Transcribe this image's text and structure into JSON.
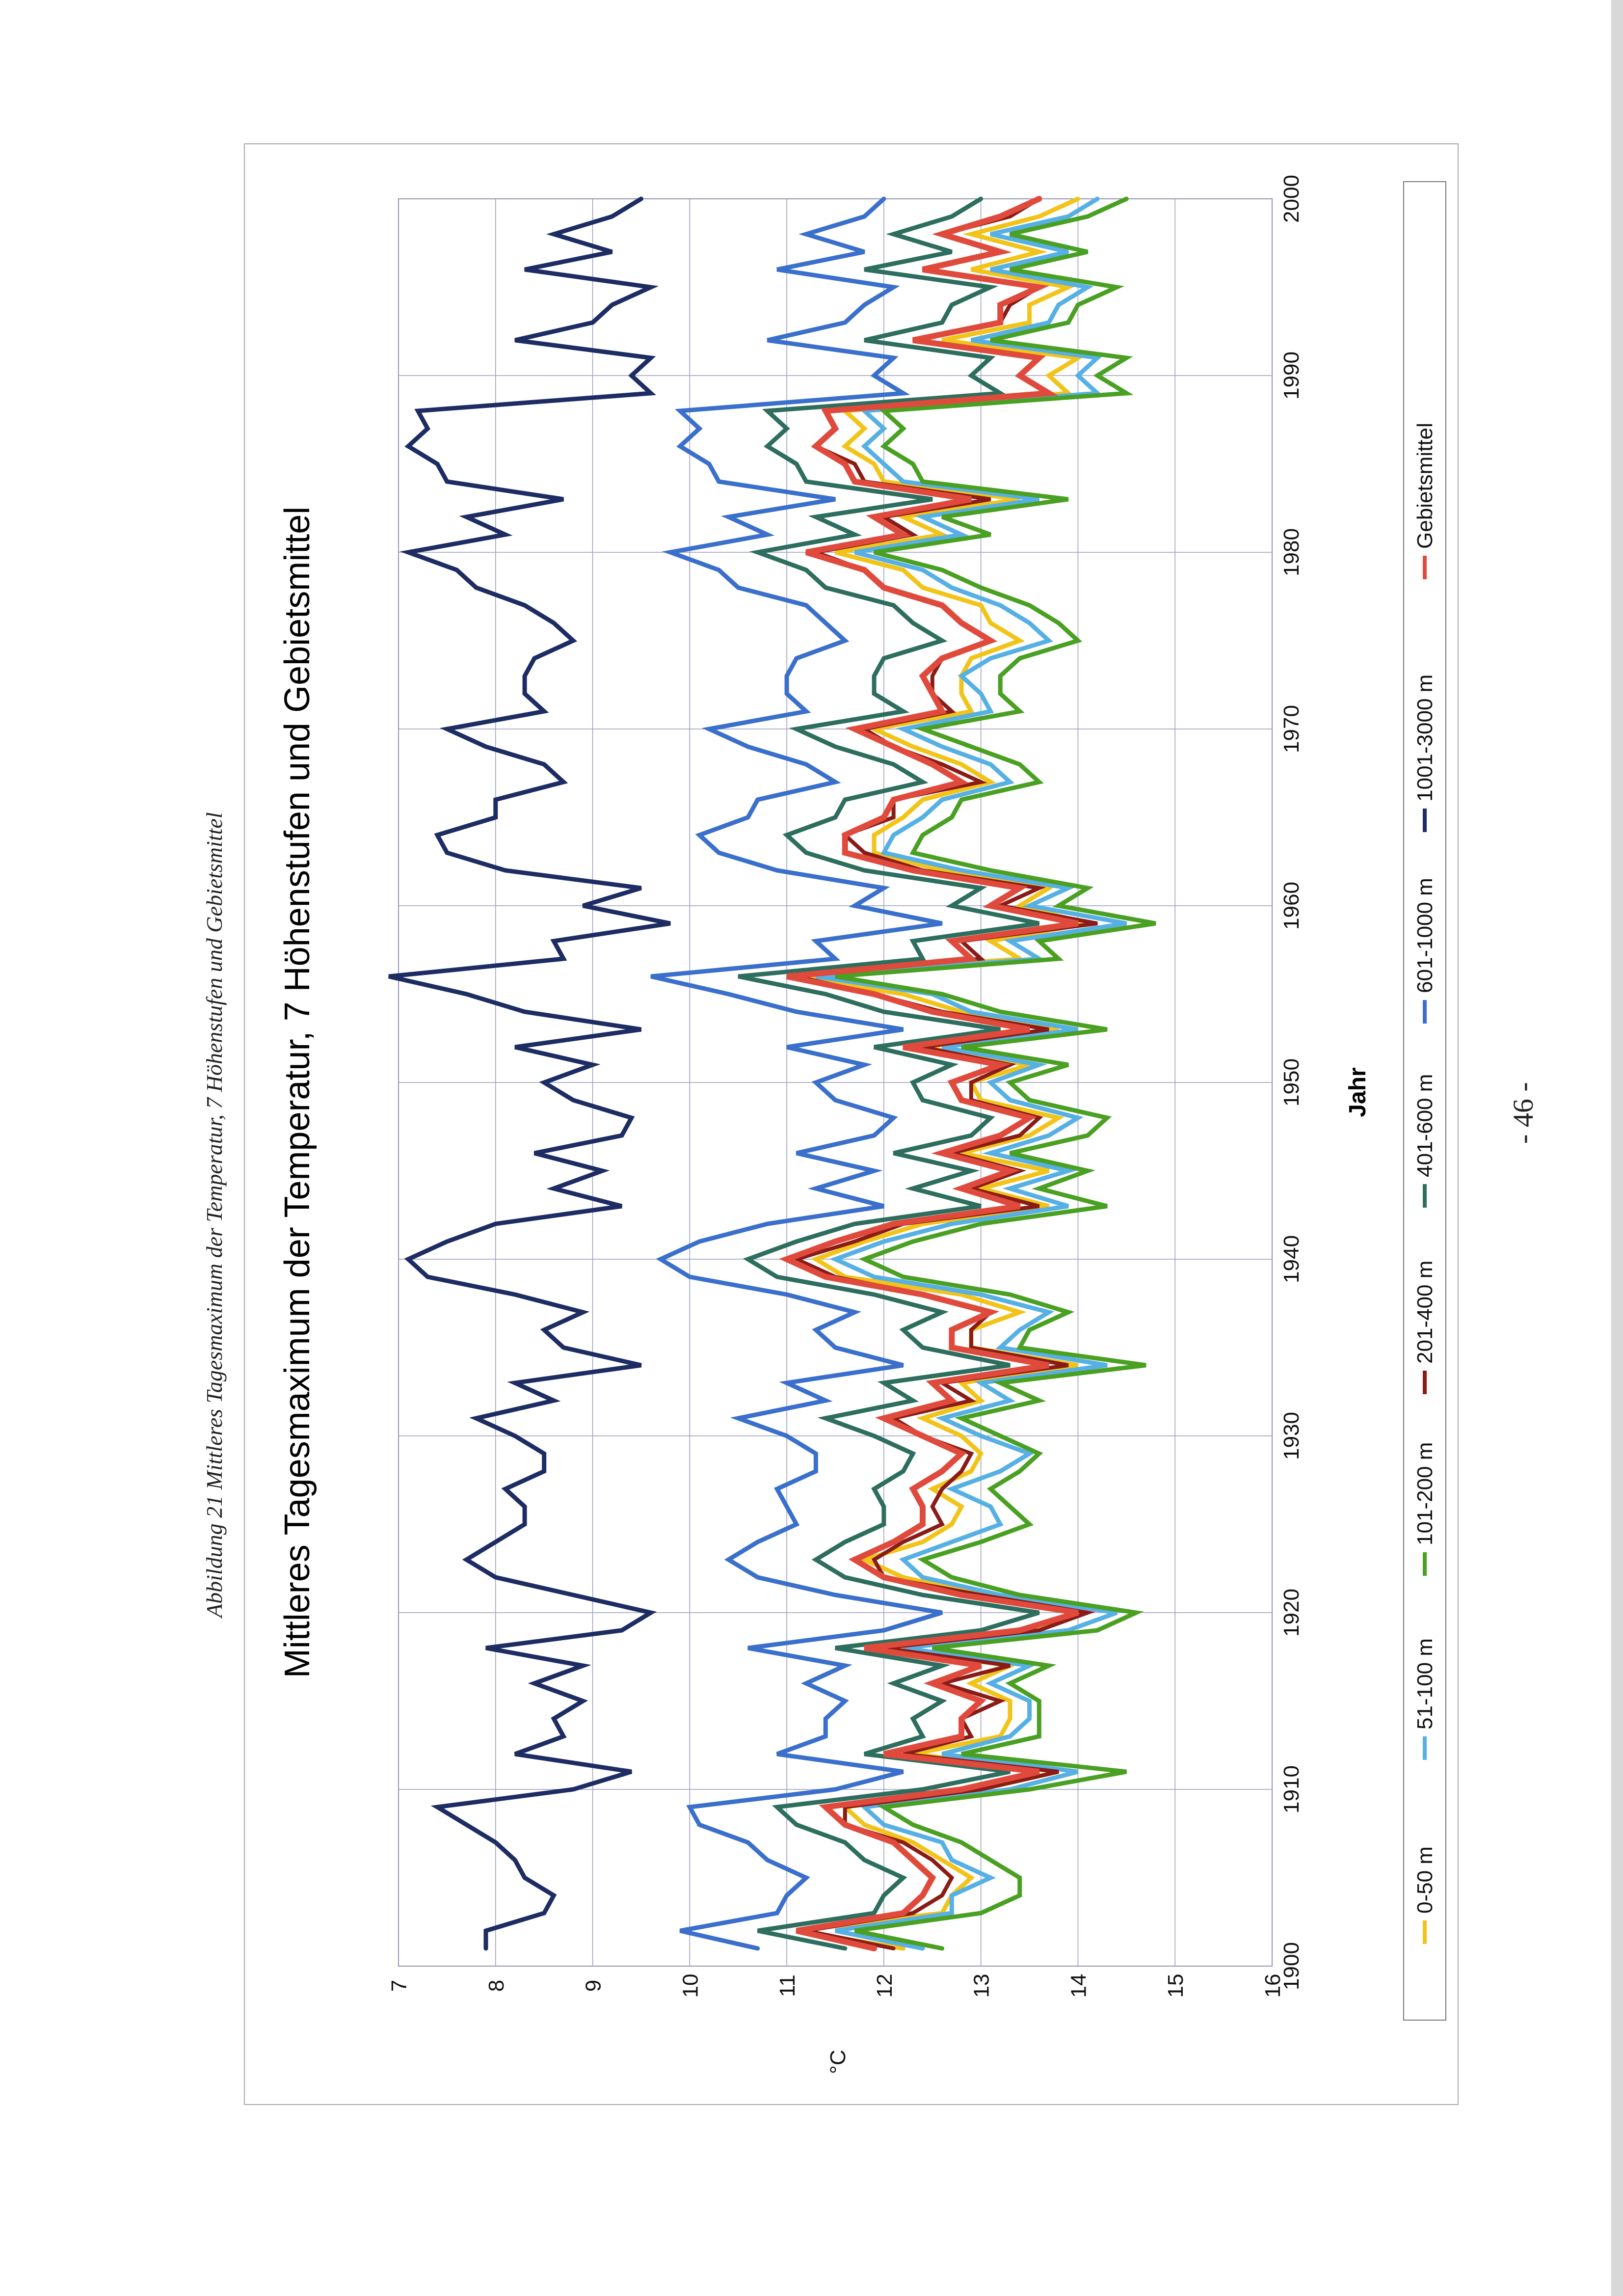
{
  "document": {
    "caption": "Abbildung 21 Mittleres Tagesmaximum der Temperatur, 7 Höhenstufen und Gebietsmittel",
    "page_number": "- 46 -"
  },
  "chart_data": {
    "type": "line",
    "orientation": "rotated 90° counter-clockwise on the page",
    "title": "Mittleres Tagesmaximum der Temperatur, 7 Höhenstufen und Gebietsmittel",
    "xlabel": "Jahr",
    "ylabel": "°C",
    "xlim": [
      1900,
      2000
    ],
    "ylim": [
      7,
      16
    ],
    "x_ticks": [
      "1900",
      "1910",
      "1920",
      "1930",
      "1940",
      "1950",
      "1960",
      "1970",
      "1980",
      "1990",
      "2000"
    ],
    "y_ticks": [
      "7",
      "8",
      "9",
      "10",
      "11",
      "12",
      "13",
      "14",
      "15",
      "16"
    ],
    "grid": true,
    "legend_position": "bottom",
    "x": [
      1901,
      1902,
      1903,
      1904,
      1905,
      1906,
      1907,
      1908,
      1909,
      1910,
      1911,
      1912,
      1913,
      1914,
      1915,
      1916,
      1917,
      1918,
      1919,
      1920,
      1921,
      1922,
      1923,
      1924,
      1925,
      1926,
      1927,
      1928,
      1929,
      1930,
      1931,
      1932,
      1933,
      1934,
      1935,
      1936,
      1937,
      1938,
      1939,
      1940,
      1941,
      1942,
      1943,
      1944,
      1945,
      1946,
      1947,
      1948,
      1949,
      1950,
      1951,
      1952,
      1953,
      1954,
      1955,
      1956,
      1957,
      1958,
      1959,
      1960,
      1961,
      1962,
      1963,
      1964,
      1965,
      1966,
      1967,
      1968,
      1969,
      1970,
      1971,
      1972,
      1973,
      1974,
      1975,
      1976,
      1977,
      1978,
      1979,
      1980,
      1981,
      1982,
      1983,
      1984,
      1985,
      1986,
      1987,
      1988,
      1989,
      1990,
      1991,
      1992,
      1993,
      1994,
      1995,
      1996,
      1997,
      1998,
      1999,
      2000
    ],
    "series": [
      {
        "name": "0-50 m",
        "color": "#f2c318",
        "values": [
          12.2,
          11.1,
          12.6,
          12.7,
          12.9,
          12.6,
          12.3,
          11.8,
          11.6,
          13.0,
          13.8,
          12.3,
          13.2,
          13.3,
          13.3,
          12.9,
          13.3,
          12.0,
          13.5,
          14.0,
          13.0,
          12.2,
          11.8,
          12.4,
          12.7,
          12.8,
          12.5,
          12.9,
          13.0,
          12.8,
          12.4,
          13.0,
          12.8,
          14.0,
          12.9,
          12.9,
          13.4,
          12.8,
          11.6,
          11.3,
          11.8,
          12.4,
          13.7,
          13.0,
          13.7,
          12.8,
          13.5,
          13.8,
          13.0,
          12.9,
          13.5,
          12.4,
          13.8,
          12.8,
          12.2,
          11.1,
          13.4,
          13.1,
          14.1,
          13.4,
          13.7,
          12.6,
          11.9,
          11.9,
          12.2,
          12.4,
          13.1,
          12.8,
          12.3,
          11.9,
          12.9,
          12.8,
          12.8,
          12.9,
          13.4,
          13.1,
          13.0,
          12.4,
          12.2,
          11.5,
          12.6,
          12.2,
          13.4,
          12.0,
          11.9,
          11.6,
          11.8,
          11.6,
          13.9,
          13.7,
          14.0,
          12.6,
          13.5,
          13.5,
          13.9,
          12.9,
          13.6,
          12.9,
          13.6,
          14.0
        ]
      },
      {
        "name": "51-100 m",
        "color": "#56b0e4",
        "values": [
          12.4,
          11.5,
          12.7,
          12.7,
          13.1,
          12.7,
          12.6,
          12.0,
          11.8,
          13.3,
          14.0,
          12.6,
          13.3,
          13.5,
          13.5,
          13.1,
          13.5,
          12.2,
          13.9,
          14.4,
          13.2,
          12.4,
          12.2,
          12.7,
          13.2,
          13.1,
          12.7,
          13.2,
          13.5,
          13.0,
          12.6,
          13.3,
          13.0,
          14.3,
          13.2,
          13.4,
          13.7,
          13.0,
          11.9,
          11.5,
          12.0,
          12.7,
          13.9,
          13.3,
          13.9,
          13.1,
          13.7,
          14.0,
          13.3,
          13.1,
          13.6,
          12.6,
          14.0,
          12.9,
          12.5,
          11.3,
          13.6,
          13.3,
          14.5,
          13.5,
          13.9,
          12.8,
          12.0,
          12.1,
          12.4,
          12.6,
          13.3,
          13.1,
          12.6,
          12.2,
          13.1,
          13.0,
          12.8,
          13.1,
          13.7,
          13.5,
          13.2,
          12.7,
          12.4,
          11.7,
          12.8,
          12.4,
          13.6,
          12.2,
          12.0,
          11.8,
          12.0,
          11.8,
          14.2,
          14.0,
          14.2,
          12.9,
          13.7,
          13.8,
          14.1,
          13.1,
          13.9,
          13.1,
          13.9,
          14.2
        ]
      },
      {
        "name": "101-200 m",
        "color": "#4aa022",
        "values": [
          12.6,
          11.7,
          13.0,
          13.4,
          13.4,
          13.1,
          12.8,
          12.3,
          12.0,
          13.5,
          14.5,
          12.8,
          13.6,
          13.6,
          13.6,
          13.3,
          13.7,
          12.5,
          14.2,
          14.6,
          13.4,
          12.7,
          12.4,
          13.0,
          13.5,
          13.3,
          13.1,
          13.4,
          13.6,
          13.2,
          12.8,
          13.6,
          13.2,
          14.7,
          13.4,
          13.5,
          13.9,
          13.3,
          12.2,
          11.8,
          12.3,
          13.0,
          14.3,
          13.6,
          14.1,
          13.3,
          14.1,
          14.3,
          13.5,
          13.3,
          13.9,
          12.8,
          14.3,
          13.2,
          12.6,
          11.5,
          13.8,
          13.6,
          14.8,
          13.8,
          14.1,
          13.1,
          12.3,
          12.4,
          12.7,
          12.8,
          13.6,
          13.4,
          12.9,
          12.4,
          13.4,
          13.2,
          13.2,
          13.4,
          14.0,
          13.8,
          13.5,
          13.0,
          12.6,
          11.9,
          13.1,
          12.6,
          13.9,
          12.4,
          12.3,
          12.0,
          12.2,
          12.0,
          14.5,
          14.2,
          14.5,
          13.1,
          13.9,
          14.0,
          14.4,
          13.3,
          14.1,
          13.3,
          14.1,
          14.5
        ]
      },
      {
        "name": "201-400 m",
        "color": "#8a1c17",
        "values": [
          12.1,
          11.2,
          12.3,
          12.6,
          12.7,
          12.5,
          12.2,
          11.6,
          11.6,
          13.0,
          13.8,
          12.2,
          12.9,
          12.8,
          13.2,
          12.6,
          13.3,
          12.0,
          13.6,
          14.1,
          13.0,
          12.0,
          11.9,
          12.2,
          12.6,
          12.5,
          12.6,
          12.8,
          12.9,
          12.4,
          12.1,
          12.9,
          12.6,
          13.9,
          12.9,
          12.9,
          13.1,
          12.4,
          11.5,
          11.1,
          11.7,
          12.2,
          13.6,
          12.9,
          13.4,
          12.7,
          13.4,
          13.6,
          12.9,
          12.9,
          13.3,
          12.4,
          13.7,
          12.6,
          11.9,
          11.1,
          13.0,
          12.8,
          14.2,
          13.2,
          13.6,
          12.4,
          11.8,
          11.6,
          12.1,
          12.1,
          13.0,
          12.6,
          12.1,
          11.8,
          12.7,
          12.5,
          12.5,
          12.6,
          13.1,
          12.8,
          12.6,
          12.0,
          11.8,
          11.3,
          12.3,
          12.0,
          13.1,
          11.8,
          11.7,
          11.3,
          11.5,
          11.4,
          13.7,
          13.4,
          13.6,
          12.3,
          13.2,
          13.3,
          13.6,
          12.4,
          13.2,
          12.6,
          13.3,
          13.6
        ]
      },
      {
        "name": "401-600 m",
        "color": "#2d6e5e",
        "values": [
          11.6,
          10.7,
          11.9,
          12.0,
          12.2,
          11.8,
          11.6,
          11.1,
          10.9,
          12.4,
          13.3,
          11.8,
          12.4,
          12.3,
          12.6,
          12.1,
          12.6,
          11.5,
          13.0,
          13.6,
          12.4,
          11.6,
          11.3,
          11.6,
          12.0,
          12.0,
          11.9,
          12.2,
          12.3,
          11.9,
          11.4,
          12.3,
          12.0,
          13.3,
          12.4,
          12.2,
          12.6,
          11.9,
          10.9,
          10.6,
          11.1,
          11.7,
          13.0,
          12.3,
          12.9,
          12.1,
          12.9,
          13.1,
          12.4,
          12.3,
          12.7,
          11.9,
          13.2,
          12.0,
          11.4,
          10.5,
          12.4,
          12.3,
          13.6,
          12.7,
          13.0,
          11.8,
          11.2,
          11.0,
          11.5,
          11.6,
          12.4,
          12.1,
          11.5,
          11.1,
          12.2,
          11.9,
          11.9,
          12.0,
          12.6,
          12.3,
          12.1,
          11.4,
          11.2,
          10.7,
          11.7,
          11.3,
          12.5,
          11.2,
          11.1,
          10.8,
          11.0,
          10.8,
          13.2,
          12.9,
          13.1,
          11.8,
          12.6,
          12.7,
          13.1,
          11.8,
          12.7,
          12.1,
          12.7,
          13.0
        ]
      },
      {
        "name": "601-1000 m",
        "color": "#3a6fcc",
        "values": [
          10.7,
          9.9,
          10.9,
          11.0,
          11.2,
          10.8,
          10.6,
          10.1,
          10.0,
          11.5,
          12.2,
          10.9,
          11.4,
          11.4,
          11.6,
          11.2,
          11.6,
          10.6,
          12.0,
          12.6,
          11.5,
          10.7,
          10.4,
          10.7,
          11.1,
          11.0,
          10.9,
          11.3,
          11.3,
          11.0,
          10.5,
          11.4,
          11.0,
          12.2,
          11.5,
          11.3,
          11.7,
          11.0,
          10.0,
          9.7,
          10.1,
          10.8,
          12.0,
          11.3,
          11.9,
          11.1,
          11.9,
          12.1,
          11.5,
          11.3,
          11.8,
          11.0,
          12.2,
          11.1,
          10.4,
          9.6,
          11.5,
          11.3,
          12.6,
          11.7,
          12.0,
          10.9,
          10.3,
          10.1,
          10.6,
          10.7,
          11.5,
          11.2,
          10.6,
          10.2,
          11.2,
          11.0,
          11.0,
          11.1,
          11.6,
          11.4,
          11.2,
          10.5,
          10.3,
          9.8,
          10.8,
          10.4,
          11.5,
          10.3,
          10.2,
          9.9,
          10.1,
          9.9,
          12.2,
          11.9,
          12.1,
          10.8,
          11.6,
          11.8,
          12.1,
          10.9,
          11.8,
          11.2,
          11.8,
          12.0
        ]
      },
      {
        "name": "1001-3000 m",
        "color": "#1d2c63",
        "values": [
          7.9,
          7.9,
          8.5,
          8.6,
          8.3,
          8.2,
          8.0,
          7.7,
          7.4,
          8.8,
          9.4,
          8.2,
          8.7,
          8.6,
          8.9,
          8.4,
          8.9,
          7.9,
          9.3,
          9.6,
          8.8,
          8.0,
          7.7,
          8.0,
          8.3,
          8.3,
          8.1,
          8.5,
          8.5,
          8.2,
          7.8,
          8.6,
          8.2,
          9.5,
          8.7,
          8.5,
          8.9,
          8.2,
          7.3,
          7.1,
          7.5,
          8.0,
          9.3,
          8.6,
          9.1,
          8.4,
          9.3,
          9.4,
          8.8,
          8.5,
          9.0,
          8.2,
          9.5,
          8.3,
          7.7,
          6.9,
          8.7,
          8.6,
          9.8,
          8.9,
          9.5,
          8.1,
          7.5,
          7.4,
          8.0,
          8.0,
          8.7,
          8.5,
          7.9,
          7.5,
          8.5,
          8.3,
          8.3,
          8.4,
          8.8,
          8.6,
          8.3,
          7.8,
          7.6,
          7.1,
          8.1,
          7.7,
          8.7,
          7.5,
          7.4,
          7.1,
          7.3,
          7.2,
          9.6,
          9.4,
          9.6,
          8.2,
          9.0,
          9.2,
          9.6,
          8.3,
          9.2,
          8.6,
          9.2,
          9.5
        ]
      },
      {
        "name": "Gebietsmittel",
        "color": "#e04a3c",
        "values": [
          11.9,
          11.1,
          12.2,
          12.4,
          12.5,
          12.3,
          12.1,
          11.6,
          11.4,
          12.8,
          13.6,
          12.0,
          12.8,
          12.8,
          13.0,
          12.5,
          13.0,
          11.8,
          13.4,
          14.0,
          12.8,
          12.0,
          11.7,
          12.1,
          12.4,
          12.4,
          12.3,
          12.6,
          12.8,
          12.4,
          12.0,
          12.7,
          12.5,
          13.7,
          12.7,
          12.7,
          13.1,
          12.4,
          11.4,
          11.0,
          11.5,
          12.1,
          13.4,
          12.8,
          13.3,
          12.6,
          13.2,
          13.5,
          12.8,
          12.7,
          13.2,
          12.2,
          13.5,
          12.5,
          11.9,
          11.0,
          12.9,
          12.7,
          14.0,
          13.1,
          13.4,
          12.3,
          11.6,
          11.6,
          12.0,
          12.1,
          12.8,
          12.5,
          12.1,
          11.7,
          12.6,
          12.5,
          12.4,
          12.6,
          13.1,
          12.8,
          12.6,
          12.0,
          11.8,
          11.2,
          12.2,
          11.9,
          12.9,
          11.7,
          11.6,
          11.3,
          11.5,
          11.4,
          13.7,
          13.4,
          13.6,
          12.3,
          13.2,
          13.2,
          13.6,
          12.4,
          13.2,
          12.6,
          13.2,
          13.6
        ]
      }
    ]
  }
}
